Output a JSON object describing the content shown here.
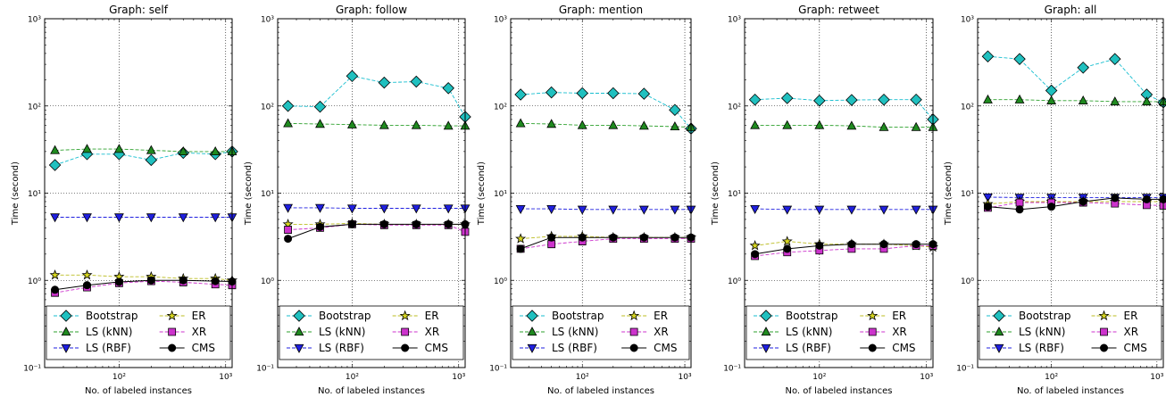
{
  "ylabel": "Time (second)",
  "xlabel": "No. of labeled instances",
  "x_ticks": [
    {
      "value": 100,
      "label": "10²"
    },
    {
      "value": 1000,
      "label": "10³"
    }
  ],
  "y_ticks": [
    {
      "value": 0.1,
      "label": "10⁻¹"
    },
    {
      "value": 1,
      "label": "10⁰"
    },
    {
      "value": 10,
      "label": "10¹"
    },
    {
      "value": 100,
      "label": "10²"
    },
    {
      "value": 1000,
      "label": "10³"
    }
  ],
  "chart_data": [
    {
      "type": "line",
      "title": "Graph: self",
      "x_scale": "log",
      "y_scale": "log",
      "xlim": [
        20,
        1150
      ],
      "ylim": [
        0.1,
        1000
      ],
      "grid": true,
      "legend": "bottom",
      "x": [
        25,
        50,
        100,
        200,
        400,
        800,
        1150
      ],
      "series": [
        {
          "name": "Bootstrap",
          "values": [
            21,
            28,
            28,
            24,
            29,
            28,
            30
          ]
        },
        {
          "name": "LS (kNN)",
          "values": [
            31,
            32,
            32,
            31,
            30,
            30,
            30
          ]
        },
        {
          "name": "LS (RBF)",
          "values": [
            5.3,
            5.3,
            5.3,
            5.3,
            5.3,
            5.3,
            5.3
          ]
        },
        {
          "name": "ER",
          "values": [
            1.15,
            1.15,
            1.1,
            1.1,
            1.05,
            1.05,
            1.0
          ]
        },
        {
          "name": "XR",
          "values": [
            0.72,
            0.83,
            0.93,
            0.98,
            0.95,
            0.9,
            0.88
          ]
        },
        {
          "name": "CMS",
          "values": [
            0.78,
            0.88,
            0.96,
            1.0,
            1.0,
            0.98,
            0.97
          ]
        }
      ]
    },
    {
      "type": "line",
      "title": "Graph: follow",
      "x_scale": "log",
      "y_scale": "log",
      "xlim": [
        20,
        1150
      ],
      "ylim": [
        0.1,
        1000
      ],
      "grid": true,
      "legend": "bottom",
      "x": [
        25,
        50,
        100,
        200,
        400,
        800,
        1150
      ],
      "series": [
        {
          "name": "Bootstrap",
          "values": [
            100,
            98,
            220,
            185,
            190,
            160,
            75
          ]
        },
        {
          "name": "LS (kNN)",
          "values": [
            63,
            62,
            61,
            60,
            60,
            59,
            59
          ]
        },
        {
          "name": "LS (RBF)",
          "values": [
            6.8,
            6.8,
            6.7,
            6.7,
            6.7,
            6.7,
            6.7
          ]
        },
        {
          "name": "ER",
          "values": [
            4.4,
            4.4,
            4.5,
            4.4,
            4.4,
            4.4,
            4.4
          ]
        },
        {
          "name": "XR",
          "values": [
            3.8,
            4.0,
            4.4,
            4.3,
            4.3,
            4.3,
            3.6
          ]
        },
        {
          "name": "CMS",
          "values": [
            3.0,
            4.1,
            4.4,
            4.4,
            4.4,
            4.4,
            4.4
          ]
        }
      ]
    },
    {
      "type": "line",
      "title": "Graph: mention",
      "x_scale": "log",
      "y_scale": "log",
      "xlim": [
        20,
        1150
      ],
      "ylim": [
        0.1,
        1000
      ],
      "grid": true,
      "legend": "bottom",
      "x": [
        25,
        50,
        100,
        200,
        400,
        800,
        1150
      ],
      "series": [
        {
          "name": "Bootstrap",
          "values": [
            135,
            143,
            140,
            140,
            138,
            90,
            55
          ]
        },
        {
          "name": "LS (kNN)",
          "values": [
            63,
            62,
            60,
            60,
            59,
            58,
            57
          ]
        },
        {
          "name": "LS (RBF)",
          "values": [
            6.6,
            6.6,
            6.5,
            6.5,
            6.5,
            6.5,
            6.5
          ]
        },
        {
          "name": "ER",
          "values": [
            3.0,
            3.2,
            3.2,
            3.1,
            3.1,
            3.1,
            3.1
          ]
        },
        {
          "name": "XR",
          "values": [
            2.3,
            2.6,
            2.8,
            3.0,
            3.0,
            3.0,
            3.0
          ]
        },
        {
          "name": "CMS",
          "values": [
            2.3,
            3.1,
            3.1,
            3.1,
            3.1,
            3.1,
            3.1
          ]
        }
      ]
    },
    {
      "type": "line",
      "title": "Graph: retweet",
      "x_scale": "log",
      "y_scale": "log",
      "xlim": [
        20,
        1150
      ],
      "ylim": [
        0.1,
        1000
      ],
      "grid": true,
      "legend": "bottom",
      "x": [
        25,
        50,
        100,
        200,
        400,
        800,
        1150
      ],
      "series": [
        {
          "name": "Bootstrap",
          "values": [
            118,
            123,
            115,
            117,
            118,
            118,
            70
          ]
        },
        {
          "name": "LS (kNN)",
          "values": [
            60,
            60,
            60,
            59,
            57,
            57,
            57
          ]
        },
        {
          "name": "LS (RBF)",
          "values": [
            6.6,
            6.5,
            6.5,
            6.5,
            6.5,
            6.5,
            6.5
          ]
        },
        {
          "name": "ER",
          "values": [
            2.5,
            2.8,
            2.6,
            2.6,
            2.6,
            2.5,
            2.4
          ]
        },
        {
          "name": "XR",
          "values": [
            1.9,
            2.1,
            2.2,
            2.3,
            2.3,
            2.5,
            2.5
          ]
        },
        {
          "name": "CMS",
          "values": [
            2.0,
            2.3,
            2.5,
            2.6,
            2.6,
            2.6,
            2.6
          ]
        }
      ]
    },
    {
      "type": "line",
      "title": "Graph: all",
      "x_scale": "log",
      "y_scale": "log",
      "xlim": [
        20,
        1150
      ],
      "ylim": [
        0.1,
        1000
      ],
      "grid": true,
      "legend": "bottom",
      "x": [
        25,
        50,
        100,
        200,
        400,
        800,
        1150
      ],
      "series": [
        {
          "name": "Bootstrap",
          "values": [
            370,
            345,
            150,
            275,
            345,
            135,
            110
          ]
        },
        {
          "name": "LS (kNN)",
          "values": [
            118,
            118,
            115,
            115,
            112,
            112,
            112
          ]
        },
        {
          "name": "LS (RBF)",
          "values": [
            9.0,
            8.9,
            8.9,
            8.9,
            8.9,
            8.9,
            8.9
          ]
        },
        {
          "name": "ER",
          "values": [
            7.5,
            8.0,
            8.0,
            8.0,
            8.0,
            8.0,
            8.0
          ]
        },
        {
          "name": "XR",
          "values": [
            6.8,
            7.8,
            7.8,
            7.8,
            7.6,
            7.3,
            7.2
          ]
        },
        {
          "name": "CMS",
          "values": [
            7.0,
            6.5,
            7.0,
            8.0,
            8.8,
            8.5,
            8.5
          ]
        }
      ]
    }
  ],
  "series_style": [
    {
      "name": "Bootstrap",
      "color": "#17becf",
      "fill": "#20c0bf",
      "marker": "diamond",
      "dash": "dashed"
    },
    {
      "name": "LS (kNN)",
      "color": "#2ca02c",
      "fill": "#1f8a1f",
      "marker": "triangle-up",
      "dash": "dashed"
    },
    {
      "name": "LS (RBF)",
      "color": "#1f1fe0",
      "fill": "#1f1fe0",
      "marker": "triangle-down",
      "dash": "dashed"
    },
    {
      "name": "ER",
      "color": "#bcbd22",
      "fill": "#d4d420",
      "marker": "star",
      "dash": "dashed"
    },
    {
      "name": "XR",
      "color": "#cc33cc",
      "fill": "#cc33cc",
      "marker": "square",
      "dash": "dashed"
    },
    {
      "name": "CMS",
      "color": "#000000",
      "fill": "#000000",
      "marker": "circle",
      "dash": "solid"
    }
  ]
}
